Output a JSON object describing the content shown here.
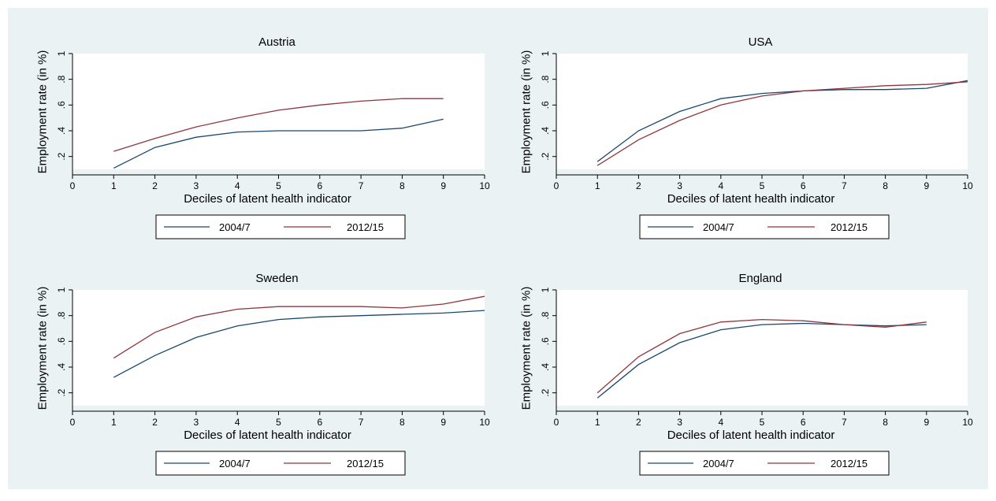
{
  "colors": {
    "background": "#eaf2f3",
    "plot_area": "#ffffff",
    "axis": "#000000",
    "series_2004_7": "#1a476f",
    "series_2012_15": "#90353b"
  },
  "chart_data": [
    {
      "type": "line",
      "title": "Austria",
      "xlabel": "Deciles of latent health indicator",
      "ylabel": "Employment rate (in %)",
      "xlim": [
        0,
        10
      ],
      "ylim": [
        0.1,
        1
      ],
      "x_ticks": [
        0,
        1,
        2,
        3,
        4,
        5,
        6,
        7,
        8,
        9,
        10
      ],
      "x_tick_labels": [
        "0",
        "1",
        "2",
        "3",
        "4",
        "5",
        "6",
        "7",
        "8",
        "9",
        "10"
      ],
      "y_ticks": [
        0.2,
        0.4,
        0.6,
        0.8,
        1.0
      ],
      "y_tick_labels": [
        ".2",
        ".4",
        ".6",
        ".8",
        "1"
      ],
      "grid": false,
      "legend": "bottom",
      "series": [
        {
          "name": "2004/7",
          "x": [
            1,
            2,
            3,
            4,
            5,
            6,
            7,
            8,
            9
          ],
          "values": [
            0.11,
            0.27,
            0.35,
            0.39,
            0.4,
            0.4,
            0.4,
            0.42,
            0.49
          ]
        },
        {
          "name": "2012/15",
          "x": [
            1,
            2,
            3,
            4,
            5,
            6,
            7,
            8,
            9
          ],
          "values": [
            0.24,
            0.34,
            0.43,
            0.5,
            0.56,
            0.6,
            0.63,
            0.65,
            0.65
          ]
        }
      ]
    },
    {
      "type": "line",
      "title": "USA",
      "xlabel": "Deciles of latent health indicator",
      "ylabel": "Employment rate (in %)",
      "xlim": [
        0,
        10
      ],
      "ylim": [
        0.1,
        1
      ],
      "x_ticks": [
        0,
        1,
        2,
        3,
        4,
        5,
        6,
        7,
        8,
        9,
        10
      ],
      "x_tick_labels": [
        "0",
        "1",
        "2",
        "3",
        "4",
        "5",
        "6",
        "7",
        "8",
        "9",
        "10"
      ],
      "y_ticks": [
        0.2,
        0.4,
        0.6,
        0.8,
        1.0
      ],
      "y_tick_labels": [
        ".2",
        ".4",
        ".6",
        ".8",
        "1"
      ],
      "grid": false,
      "legend": "bottom",
      "series": [
        {
          "name": "2004/7",
          "x": [
            1,
            2,
            3,
            4,
            5,
            6,
            7,
            8,
            9,
            10
          ],
          "values": [
            0.16,
            0.4,
            0.55,
            0.65,
            0.69,
            0.71,
            0.72,
            0.72,
            0.73,
            0.79
          ]
        },
        {
          "name": "2012/15",
          "x": [
            1,
            2,
            3,
            4,
            5,
            6,
            7,
            8,
            9,
            10
          ],
          "values": [
            0.13,
            0.33,
            0.48,
            0.6,
            0.67,
            0.71,
            0.73,
            0.75,
            0.76,
            0.78
          ]
        }
      ]
    },
    {
      "type": "line",
      "title": "Sweden",
      "xlabel": "Deciles of latent health indicator",
      "ylabel": "Employment rate (in %)",
      "xlim": [
        0,
        10
      ],
      "ylim": [
        0.1,
        1
      ],
      "x_ticks": [
        0,
        1,
        2,
        3,
        4,
        5,
        6,
        7,
        8,
        9,
        10
      ],
      "x_tick_labels": [
        "0",
        "1",
        "2",
        "3",
        "4",
        "5",
        "6",
        "7",
        "8",
        "9",
        "10"
      ],
      "y_ticks": [
        0.2,
        0.4,
        0.6,
        0.8,
        1.0
      ],
      "y_tick_labels": [
        ".2",
        ".4",
        ".6",
        ".8",
        "1"
      ],
      "grid": false,
      "legend": "bottom",
      "series": [
        {
          "name": "2004/7",
          "x": [
            1,
            2,
            3,
            4,
            5,
            6,
            7,
            8,
            9,
            10
          ],
          "values": [
            0.32,
            0.49,
            0.63,
            0.72,
            0.77,
            0.79,
            0.8,
            0.81,
            0.82,
            0.84
          ]
        },
        {
          "name": "2012/15",
          "x": [
            1,
            2,
            3,
            4,
            5,
            6,
            7,
            8,
            9,
            10
          ],
          "values": [
            0.47,
            0.67,
            0.79,
            0.85,
            0.87,
            0.87,
            0.87,
            0.86,
            0.89,
            0.95
          ]
        }
      ]
    },
    {
      "type": "line",
      "title": "England",
      "xlabel": "Deciles of latent health indicator",
      "ylabel": "Employment rate (in %)",
      "xlim": [
        0,
        10
      ],
      "ylim": [
        0.1,
        1
      ],
      "x_ticks": [
        0,
        1,
        2,
        3,
        4,
        5,
        6,
        7,
        8,
        9,
        10
      ],
      "x_tick_labels": [
        "0",
        "1",
        "2",
        "3",
        "4",
        "5",
        "6",
        "7",
        "8",
        "9",
        "10"
      ],
      "y_ticks": [
        0.2,
        0.4,
        0.6,
        0.8,
        1.0
      ],
      "y_tick_labels": [
        ".2",
        ".4",
        ".6",
        ".8",
        "1"
      ],
      "grid": false,
      "legend": "bottom",
      "series": [
        {
          "name": "2004/7",
          "x": [
            1,
            2,
            3,
            4,
            5,
            6,
            7,
            8,
            9
          ],
          "values": [
            0.16,
            0.42,
            0.59,
            0.69,
            0.73,
            0.74,
            0.73,
            0.72,
            0.73
          ]
        },
        {
          "name": "2012/15",
          "x": [
            1,
            2,
            3,
            4,
            5,
            6,
            7,
            8,
            9
          ],
          "values": [
            0.2,
            0.48,
            0.66,
            0.75,
            0.77,
            0.76,
            0.73,
            0.71,
            0.75
          ]
        }
      ]
    }
  ]
}
